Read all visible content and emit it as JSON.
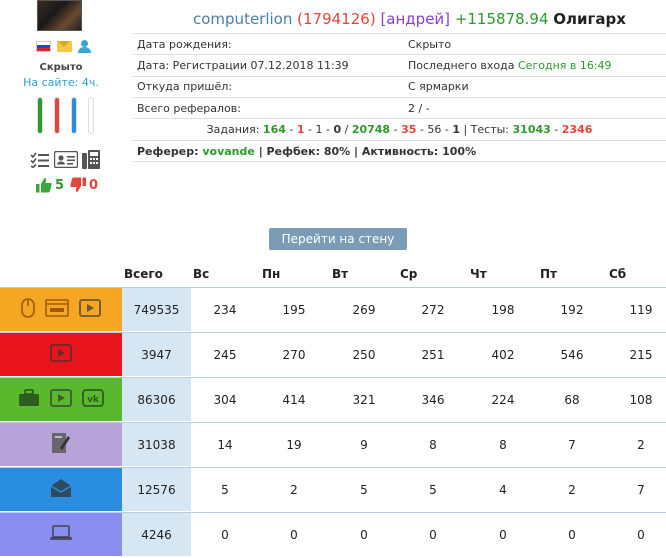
{
  "profile": {
    "username": "computerlion",
    "user_id": "(1794126)",
    "nickname": "[андрей]",
    "balance": "+115878.94",
    "rank": "Олигарх",
    "hidden_label": "Скрыто",
    "online_text": "На сайте: 4ч.",
    "likes": "5",
    "dislikes": "0",
    "flag_colors": [
      "#ffffff",
      "#1f4fb5",
      "#d8242a"
    ],
    "bars": [
      {
        "color": "#2c9a2c",
        "fill_percent": 100
      },
      {
        "color": "#e0463b",
        "fill_percent": 100
      },
      {
        "color": "#2a8fd6",
        "fill_percent": 100
      },
      {
        "color": "#eeeeee",
        "fill_percent": 0
      }
    ]
  },
  "info": {
    "rows": [
      {
        "label": "Дата рождения:",
        "value": "Скрыто"
      },
      {
        "label": "Дата: Регистрации 07.12.2018 11:39",
        "value_prefix": "Последнего входа",
        "value": "Сегодня в 16:49"
      },
      {
        "label": "Откуда пришёл:",
        "value": "С ярмарки"
      },
      {
        "label": "Всего рефералов:",
        "value": "2 / -"
      }
    ],
    "tasks": {
      "label": "Задания:",
      "v1": "164",
      "v2": "1",
      "v3": "1",
      "v4": "0",
      "v5": "20748",
      "v6": "35",
      "v7": "56",
      "v8": "1",
      "tests_label": "Тесты:",
      "t1": "31043",
      "t2": "2346"
    },
    "referrer": {
      "label": "Реферер:",
      "value": "vovande",
      "refback": "| Рефбек: 80%",
      "activity": "| Активность: 100%"
    }
  },
  "wall_button": "Перейти на стену",
  "stats": {
    "headers": [
      "Всего",
      "Вс",
      "Пн",
      "Вт",
      "Ср",
      "Чт",
      "Пт",
      "Сб"
    ],
    "rows": [
      {
        "color": "#f5a623",
        "icons": [
          "mouse-icon",
          "browser-icon",
          "video-icon"
        ],
        "total": "749535",
        "days": [
          "234",
          "195",
          "269",
          "272",
          "198",
          "192",
          "119"
        ]
      },
      {
        "color": "#e8141c",
        "icons": [
          "video-icon"
        ],
        "total": "3947",
        "days": [
          "245",
          "270",
          "250",
          "251",
          "402",
          "546",
          "215"
        ]
      },
      {
        "color": "#5ab82c",
        "icons": [
          "briefcase-icon",
          "video-icon",
          "vk-icon"
        ],
        "total": "86306",
        "days": [
          "304",
          "414",
          "321",
          "346",
          "224",
          "68",
          "108"
        ]
      },
      {
        "color": "#b8a3d8",
        "icons": [
          "edit-document-icon"
        ],
        "total": "31038",
        "days": [
          "14",
          "19",
          "9",
          "8",
          "8",
          "7",
          "2"
        ]
      },
      {
        "color": "#2a8ee0",
        "icons": [
          "open-mail-icon"
        ],
        "total": "12576",
        "days": [
          "5",
          "2",
          "5",
          "5",
          "4",
          "2",
          "7"
        ]
      },
      {
        "color": "#8a8ef0",
        "icons": [
          "laptop-icon"
        ],
        "total": "4246",
        "days": [
          "0",
          "0",
          "0",
          "0",
          "0",
          "0",
          "0"
        ]
      }
    ]
  }
}
